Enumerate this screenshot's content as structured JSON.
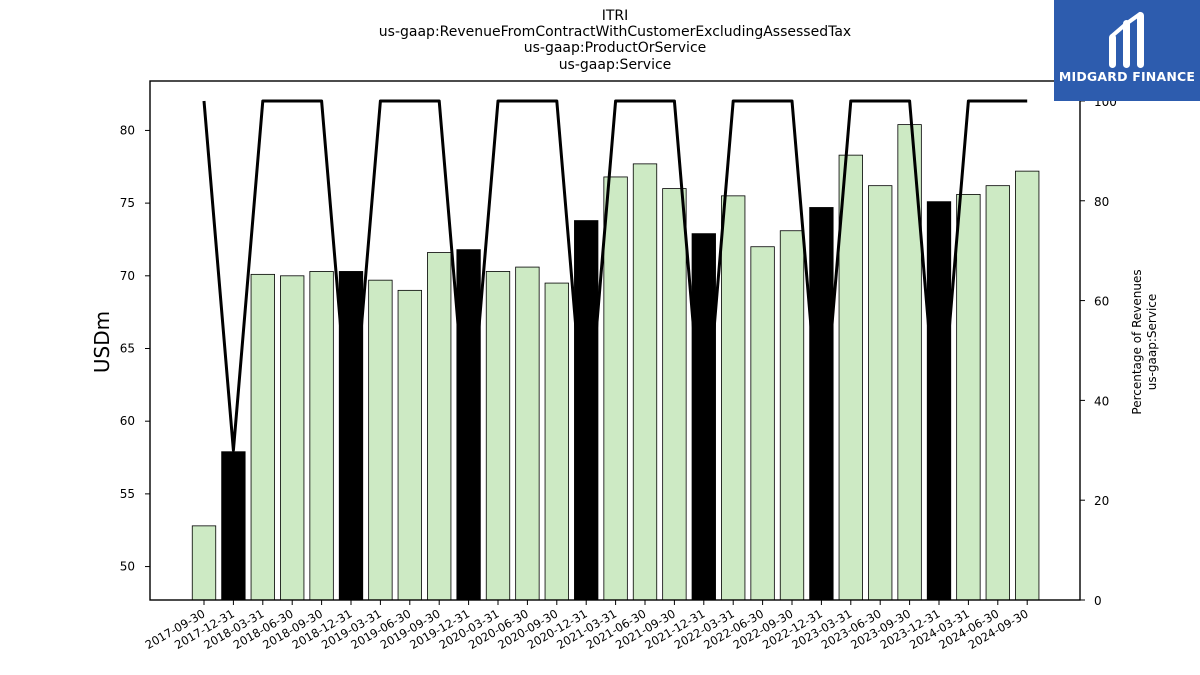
{
  "chart_data": {
    "type": "bar",
    "title_lines": [
      "ITRI",
      "us-gaap:RevenueFromContractWithCustomerExcludingAssessedTax",
      "us-gaap:ProductOrService",
      "us-gaap:Service"
    ],
    "ylabel": "USDm",
    "y2label_lines": [
      "Percentage of Revenues",
      "us-gaap:Service"
    ],
    "categories": [
      "2017-09-30",
      "2017-12-31",
      "2018-03-31",
      "2018-06-30",
      "2018-09-30",
      "2018-12-31",
      "2019-03-31",
      "2019-06-30",
      "2019-09-30",
      "2019-12-31",
      "2020-03-31",
      "2020-06-30",
      "2020-09-30",
      "2020-12-31",
      "2021-03-31",
      "2021-06-30",
      "2021-09-30",
      "2021-12-31",
      "2022-03-31",
      "2022-06-30",
      "2022-09-30",
      "2022-12-31",
      "2023-03-31",
      "2023-06-30",
      "2023-09-30",
      "2023-12-31",
      "2024-03-31",
      "2024-06-30",
      "2024-09-30"
    ],
    "values": [
      52.8,
      57.9,
      70.1,
      70.0,
      70.3,
      70.3,
      69.7,
      69.0,
      71.6,
      71.8,
      70.3,
      70.6,
      69.5,
      73.8,
      76.8,
      77.7,
      76.0,
      72.9,
      75.5,
      72.0,
      73.1,
      74.7,
      78.3,
      76.2,
      80.4,
      75.1,
      75.6,
      76.2,
      77.2
    ],
    "bar_kind": [
      "quarter",
      "annual",
      "quarter",
      "quarter",
      "quarter",
      "annual",
      "quarter",
      "quarter",
      "quarter",
      "annual",
      "quarter",
      "quarter",
      "quarter",
      "annual",
      "quarter",
      "quarter",
      "quarter",
      "annual",
      "quarter",
      "quarter",
      "quarter",
      "annual",
      "quarter",
      "quarter",
      "quarter",
      "annual",
      "quarter",
      "quarter",
      "quarter"
    ],
    "percentage_line": [
      100,
      30,
      100,
      100,
      100,
      30,
      100,
      100,
      100,
      30,
      100,
      100,
      100,
      30,
      100,
      100,
      100,
      30,
      100,
      100,
      100,
      30,
      100,
      100,
      100,
      30,
      100,
      100,
      100
    ],
    "ylim": [
      47.7,
      83.4
    ],
    "y2lim": [
      0,
      104
    ],
    "yticks": [
      50,
      55,
      60,
      65,
      70,
      75,
      80
    ],
    "y2ticks": [
      0,
      20,
      40,
      60,
      80,
      100
    ],
    "colors": {
      "quarter_bar": "#cdeac4",
      "annual_bar": "#000000",
      "bar_edge": "#000000",
      "line": "#000000"
    },
    "grid": false
  },
  "logo": {
    "text": "MIDGARD FINANCE",
    "background": "#2d5cae"
  }
}
